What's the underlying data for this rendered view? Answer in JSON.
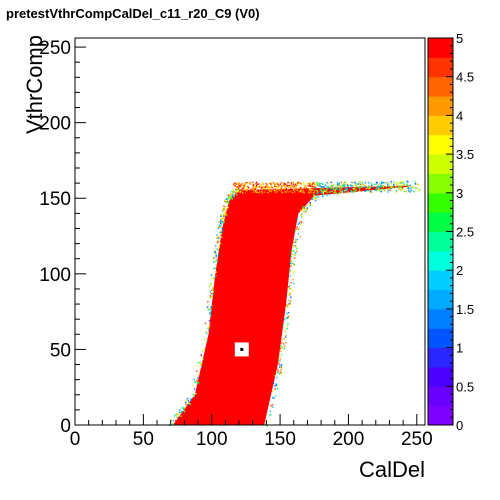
{
  "chart_data": {
    "type": "heatmap",
    "title": "pretestVthrCompCalDel_c11_r20_C9 (V0)",
    "xlabel": "CalDel",
    "ylabel": "VthrComp",
    "xlim": [
      0,
      256
    ],
    "ylim": [
      0,
      256
    ],
    "zlim": [
      0,
      5
    ],
    "x_ticks": [
      "0",
      "50",
      "100",
      "150",
      "200",
      "250"
    ],
    "y_ticks": [
      "0",
      "50",
      "100",
      "150",
      "200",
      "250"
    ],
    "z_ticks": [
      "0",
      "0.5",
      "1",
      "1.5",
      "2",
      "2.5",
      "3",
      "3.5",
      "4",
      "4.5",
      "5"
    ],
    "x_tick_values": [
      0,
      50,
      100,
      150,
      200,
      250
    ],
    "y_tick_values": [
      0,
      50,
      100,
      150,
      200,
      250
    ],
    "z_tick_values": [
      0,
      0.5,
      1,
      1.5,
      2,
      2.5,
      3,
      3.5,
      4,
      4.5,
      5
    ],
    "region": {
      "description_points_left_edge": [
        [
          72,
          0
        ],
        [
          88,
          20
        ],
        [
          98,
          60
        ],
        [
          103,
          100
        ],
        [
          108,
          130
        ],
        [
          113,
          148
        ],
        [
          120,
          155
        ]
      ],
      "description_points_right_edge": [
        [
          138,
          0
        ],
        [
          148,
          40
        ],
        [
          154,
          80
        ],
        [
          158,
          115
        ],
        [
          163,
          140
        ],
        [
          175,
          152
        ],
        [
          245,
          158
        ]
      ],
      "value": 5,
      "top_plateau_y": 157,
      "plateau_x_range": [
        115,
        252
      ]
    },
    "marker": {
      "x": 122,
      "y": 50
    },
    "grid": false,
    "legend": "colorbar right"
  }
}
